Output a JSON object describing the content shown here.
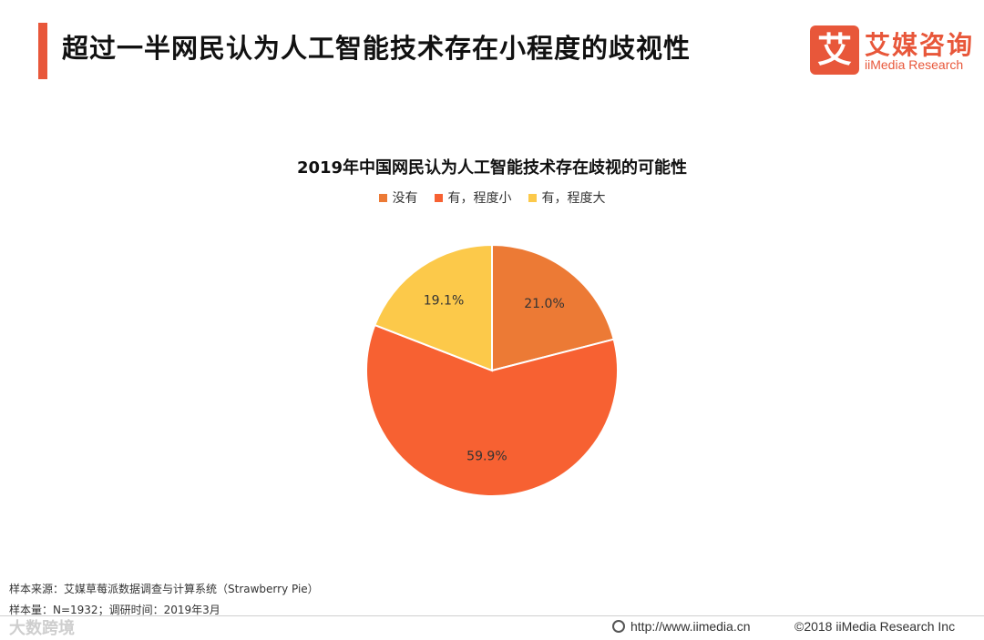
{
  "header": {
    "title": "超过一半网民认为人工智能技术存在小程度的歧视性",
    "logo_mark": "艾",
    "logo_cn": "艾媒咨询",
    "logo_en": "iiMedia Research"
  },
  "chart_data": {
    "type": "pie",
    "title": "2019年中国网民认为人工智能技术存在歧视的可能性",
    "legend_position": "top",
    "categories": [
      "没有",
      "有，程度小",
      "有，程度大"
    ],
    "values": [
      21.0,
      59.9,
      19.1
    ],
    "labels": [
      "21.0%",
      "59.9%",
      "19.1%"
    ],
    "colors": [
      "#ec7a35",
      "#f76132",
      "#fcc94a"
    ]
  },
  "footer": {
    "source": "样本来源：艾媒草莓派数据调查与计算系统（Strawberry Pie）",
    "sample": "样本量：N=1932；调研时间：2019年3月",
    "url": "http://www.iimedia.cn",
    "copyright": "©2018  iiMedia Research  Inc",
    "watermark": "大数跨境"
  }
}
